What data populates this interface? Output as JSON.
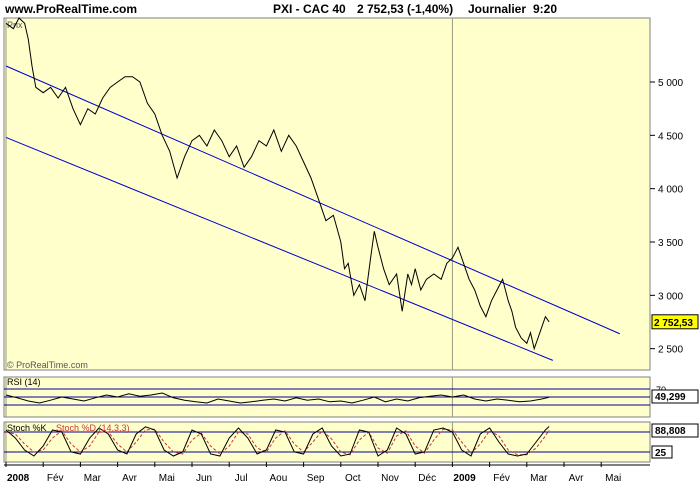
{
  "header": {
    "site": "www.ProRealTime.com",
    "title": "PXI - CAC 40",
    "value": "2 752,53 (-1,40%)",
    "period": "Journalier",
    "time": "9:20"
  },
  "colors": {
    "panel_bg": "#ffffcc",
    "price_line": "#000000",
    "channel": "#0000cc",
    "rsi_line": "#000000",
    "stoch_k": "#000000",
    "stoch_d": "#cc3333",
    "ref_line": "#000099"
  },
  "chart_data": [
    {
      "type": "line",
      "panel": "price",
      "label": "Prix",
      "watermark": "© ProRealTime.com",
      "current_value_label": "2 752,53",
      "ylim": [
        2300,
        5600
      ],
      "yticks": [
        2500,
        3000,
        3500,
        4000,
        4500,
        5000
      ],
      "ytick_labels": [
        "2 500",
        "3 000",
        "3 500",
        "4 000",
        "4 500",
        "5 000"
      ],
      "x_labels": [
        "2008",
        "Fév",
        "Mar",
        "Avr",
        "Mai",
        "Jun",
        "Jul",
        "Aou",
        "Sep",
        "Oct",
        "Nov",
        "Déc",
        "2009",
        "Fév",
        "Mar",
        "Avr",
        "Mai"
      ],
      "x_month_index": [
        0,
        1,
        2,
        3,
        4,
        5,
        6,
        7,
        8,
        9,
        10,
        11,
        12,
        13,
        14,
        15,
        16
      ],
      "bold_labels": [
        "2008",
        "2009"
      ],
      "series": [
        {
          "x": [
            0.0,
            0.2,
            0.35,
            0.5,
            0.6,
            0.7,
            0.8,
            1.0,
            1.2,
            1.4,
            1.6,
            1.8,
            2.0,
            2.2,
            2.4,
            2.6,
            2.8,
            3.0,
            3.2,
            3.4,
            3.6,
            3.8,
            4.0,
            4.2,
            4.4,
            4.6,
            4.8,
            5.0,
            5.2,
            5.4,
            5.6,
            5.8,
            6.0,
            6.2,
            6.4,
            6.6,
            6.8,
            7.0,
            7.2,
            7.4,
            7.6,
            7.8,
            8.0,
            8.2,
            8.4,
            8.6,
            8.8,
            9.0,
            9.1,
            9.2,
            9.35,
            9.5,
            9.65,
            9.8,
            9.9,
            10.0,
            10.15,
            10.3,
            10.5,
            10.65,
            10.8,
            10.9,
            11.0,
            11.15,
            11.3,
            11.5,
            11.7,
            11.85,
            12.0,
            12.15,
            12.3,
            12.45,
            12.6,
            12.75,
            12.9,
            13.05,
            13.2,
            13.35,
            13.5,
            13.6,
            13.7,
            13.85,
            14.0,
            14.1,
            14.2,
            14.3,
            14.4,
            14.5,
            14.6
          ],
          "y": [
            5550,
            5500,
            5600,
            5550,
            5400,
            5150,
            4950,
            4900,
            4950,
            4850,
            4950,
            4750,
            4600,
            4750,
            4700,
            4850,
            4950,
            5000,
            5050,
            5050,
            5000,
            4800,
            4700,
            4500,
            4350,
            4100,
            4300,
            4450,
            4500,
            4400,
            4550,
            4450,
            4300,
            4400,
            4200,
            4300,
            4450,
            4400,
            4550,
            4350,
            4500,
            4400,
            4250,
            4100,
            3900,
            3700,
            3750,
            3500,
            3250,
            3300,
            3000,
            3100,
            2950,
            3350,
            3600,
            3450,
            3250,
            3100,
            3200,
            2850,
            3200,
            3100,
            3250,
            3050,
            3150,
            3200,
            3150,
            3300,
            3350,
            3450,
            3300,
            3150,
            3050,
            2900,
            2800,
            2950,
            3050,
            3150,
            2950,
            2850,
            2700,
            2600,
            2550,
            2650,
            2500,
            2600,
            2700,
            2800,
            2752
          ]
        }
      ],
      "channel_lines": [
        {
          "x": [
            0.0,
            16.5
          ],
          "y": [
            5150,
            2640
          ]
        },
        {
          "x": [
            0.0,
            14.7
          ],
          "y": [
            4480,
            2390
          ]
        }
      ]
    },
    {
      "type": "line",
      "panel": "rsi",
      "label": "RSI (14)",
      "current_value_label": "49,299",
      "ylim": [
        0,
        100
      ],
      "levels": [
        30,
        50,
        70
      ],
      "tick_labels": [
        "70"
      ],
      "series": [
        {
          "x": [
            0.0,
            0.3,
            0.6,
            0.9,
            1.2,
            1.5,
            1.8,
            2.1,
            2.4,
            2.7,
            3.0,
            3.3,
            3.6,
            3.9,
            4.2,
            4.5,
            4.8,
            5.1,
            5.4,
            5.7,
            6.0,
            6.3,
            6.6,
            6.9,
            7.2,
            7.5,
            7.8,
            8.1,
            8.4,
            8.7,
            9.0,
            9.3,
            9.6,
            9.9,
            10.2,
            10.5,
            10.8,
            11.1,
            11.4,
            11.7,
            12.0,
            12.3,
            12.6,
            12.9,
            13.2,
            13.5,
            13.8,
            14.1,
            14.4,
            14.6
          ],
          "y": [
            55,
            48,
            40,
            35,
            42,
            50,
            45,
            40,
            48,
            55,
            50,
            58,
            52,
            55,
            60,
            48,
            42,
            38,
            35,
            45,
            40,
            35,
            38,
            42,
            45,
            40,
            48,
            42,
            45,
            38,
            40,
            35,
            42,
            50,
            38,
            45,
            40,
            48,
            52,
            55,
            50,
            55,
            45,
            40,
            45,
            42,
            38,
            40,
            45,
            49.3
          ]
        }
      ]
    },
    {
      "type": "line",
      "panel": "stoch",
      "label": "Stoch %K",
      "label2": "Stoch %D (14,3,3)",
      "current_value_label": "88,808",
      "low_label": "25",
      "ylim": [
        0,
        100
      ],
      "levels": [
        25,
        75
      ],
      "series": [
        {
          "name": "Stoch %K",
          "x": [
            0.0,
            0.25,
            0.5,
            0.75,
            1.0,
            1.25,
            1.5,
            1.75,
            2.0,
            2.25,
            2.5,
            2.75,
            3.0,
            3.25,
            3.5,
            3.75,
            4.0,
            4.25,
            4.5,
            4.75,
            5.0,
            5.25,
            5.5,
            5.75,
            6.0,
            6.25,
            6.5,
            6.75,
            7.0,
            7.25,
            7.5,
            7.75,
            8.0,
            8.25,
            8.5,
            8.75,
            9.0,
            9.25,
            9.5,
            9.75,
            10.0,
            10.25,
            10.5,
            10.75,
            11.0,
            11.25,
            11.5,
            11.75,
            12.0,
            12.25,
            12.5,
            12.75,
            13.0,
            13.25,
            13.5,
            13.75,
            14.0,
            14.25,
            14.5,
            14.6
          ],
          "y": [
            80,
            60,
            30,
            15,
            40,
            80,
            75,
            25,
            20,
            60,
            85,
            70,
            30,
            20,
            70,
            88,
            80,
            30,
            15,
            25,
            80,
            70,
            20,
            15,
            60,
            85,
            60,
            20,
            30,
            80,
            75,
            25,
            20,
            70,
            85,
            40,
            15,
            20,
            80,
            75,
            15,
            30,
            85,
            70,
            20,
            25,
            80,
            85,
            75,
            30,
            15,
            70,
            85,
            50,
            20,
            15,
            20,
            50,
            80,
            88.8
          ]
        },
        {
          "name": "Stoch %D (14,3,3)",
          "x": [
            0.0,
            0.25,
            0.5,
            0.75,
            1.0,
            1.25,
            1.5,
            1.75,
            2.0,
            2.25,
            2.5,
            2.75,
            3.0,
            3.25,
            3.5,
            3.75,
            4.0,
            4.25,
            4.5,
            4.75,
            5.0,
            5.25,
            5.5,
            5.75,
            6.0,
            6.25,
            6.5,
            6.75,
            7.0,
            7.25,
            7.5,
            7.75,
            8.0,
            8.25,
            8.5,
            8.75,
            9.0,
            9.25,
            9.5,
            9.75,
            10.0,
            10.25,
            10.5,
            10.75,
            11.0,
            11.25,
            11.5,
            11.75,
            12.0,
            12.25,
            12.5,
            12.75,
            13.0,
            13.25,
            13.5,
            13.75,
            14.0,
            14.25,
            14.5,
            14.6
          ],
          "y": [
            75,
            70,
            45,
            25,
            30,
            60,
            78,
            45,
            25,
            40,
            75,
            75,
            45,
            25,
            50,
            80,
            82,
            50,
            25,
            20,
            55,
            72,
            40,
            20,
            40,
            75,
            70,
            35,
            25,
            60,
            78,
            45,
            25,
            50,
            78,
            58,
            25,
            18,
            55,
            75,
            35,
            22,
            65,
            78,
            40,
            22,
            55,
            82,
            80,
            50,
            22,
            45,
            78,
            65,
            30,
            18,
            18,
            35,
            65,
            80
          ]
        }
      ]
    }
  ]
}
